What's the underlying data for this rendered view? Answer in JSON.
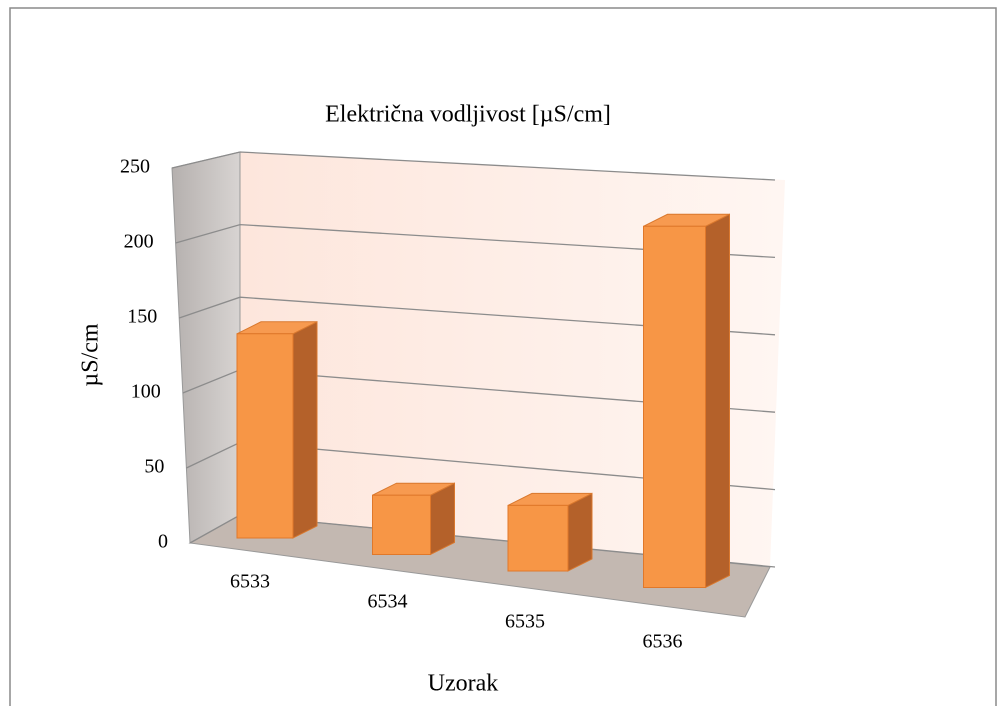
{
  "chart_data": {
    "type": "bar3d",
    "title": "Električna vodljivost [µS/cm]",
    "x_label": "Uzorak",
    "y_label": "µS/cm",
    "categories": [
      "6533",
      "6534",
      "6535",
      "6536"
    ],
    "values": [
      138,
      38,
      40,
      210
    ],
    "color": "#f79646",
    "ylim": [
      0,
      250
    ],
    "yticks": [
      0,
      50,
      100,
      150,
      200,
      250
    ],
    "grid": true
  }
}
